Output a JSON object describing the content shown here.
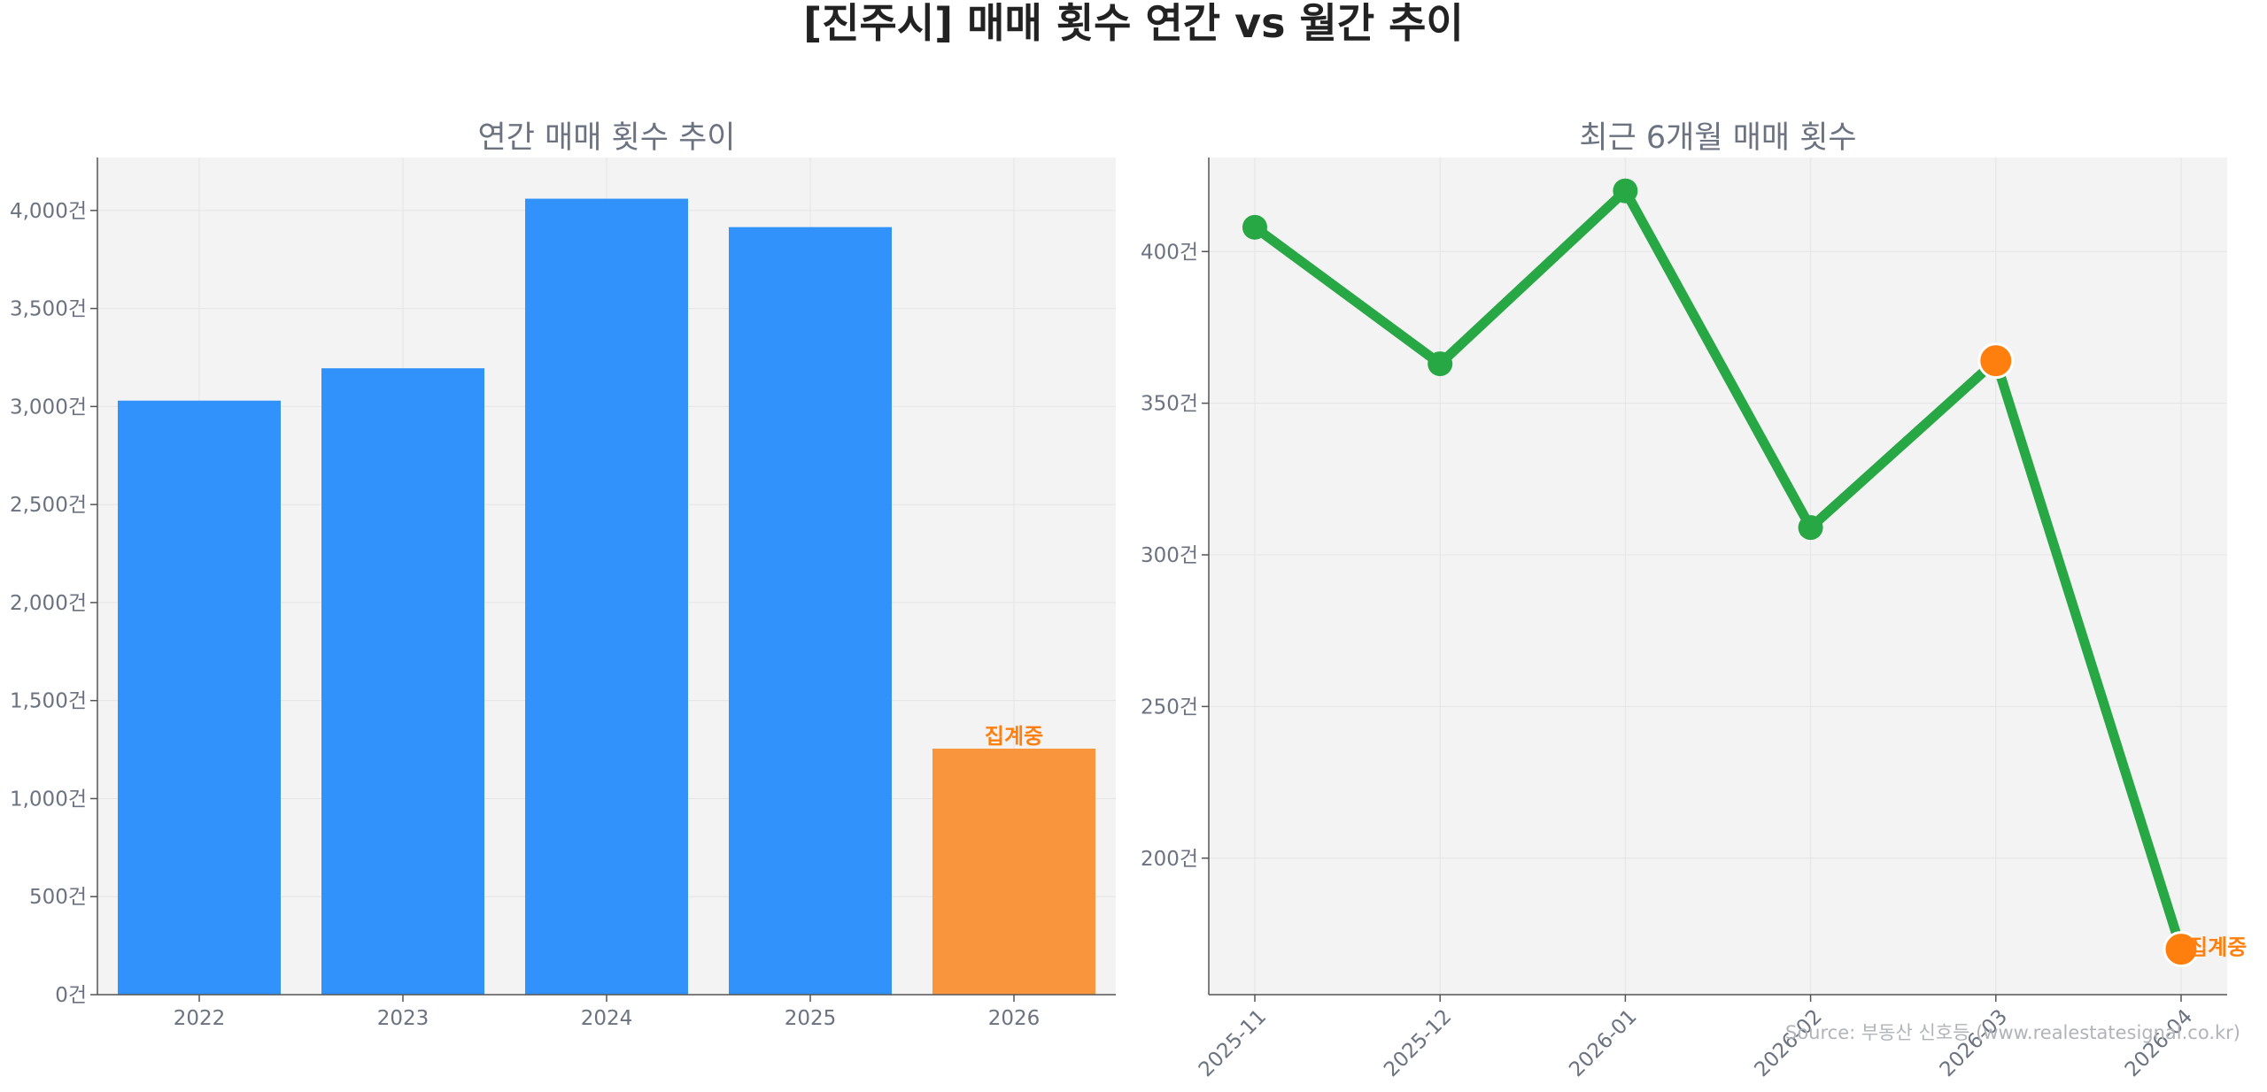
{
  "title": "[진주시] 매매 횟수 연간 vs 월간 추이",
  "source": "Source: 부동산 신호등 (www.realestatesignal.co.kr)",
  "chart_data": [
    {
      "type": "bar",
      "title": "연간 매매 횟수 추이",
      "categories": [
        "2022",
        "2023",
        "2024",
        "2025",
        "2026"
      ],
      "values": [
        3030,
        3195,
        4060,
        3915,
        1255
      ],
      "ylim": [
        0,
        4270
      ],
      "yticks": [
        0,
        500,
        1000,
        1500,
        2000,
        2500,
        3000,
        3500,
        4000
      ],
      "ytick_labels": [
        "0건",
        "500건",
        "1,000건",
        "1,500건",
        "2,000건",
        "2,500건",
        "3,000건",
        "3,500건",
        "4,000건"
      ],
      "grid": true,
      "colors": {
        "complete": "#3192fb",
        "in_progress": "#f9963d"
      },
      "in_progress_index": 4,
      "annotation": "집계중"
    },
    {
      "type": "line",
      "title": "최근 6개월 매매 횟수",
      "x": [
        "2025-11",
        "2025-12",
        "2026-01",
        "2026-02",
        "2026-03",
        "2026-04"
      ],
      "y": [
        408,
        363,
        420,
        309,
        364,
        170
      ],
      "ylim": [
        155,
        431
      ],
      "yticks": [
        200,
        250,
        300,
        350,
        400
      ],
      "ytick_labels": [
        "200건",
        "250건",
        "300건",
        "350건",
        "400건"
      ],
      "grid": true,
      "colors": {
        "line": "#28a745",
        "highlight": "#ff7f0e"
      },
      "highlight_indices": [
        4,
        5
      ],
      "annotation_index": 5,
      "annotation": "집계중"
    }
  ]
}
